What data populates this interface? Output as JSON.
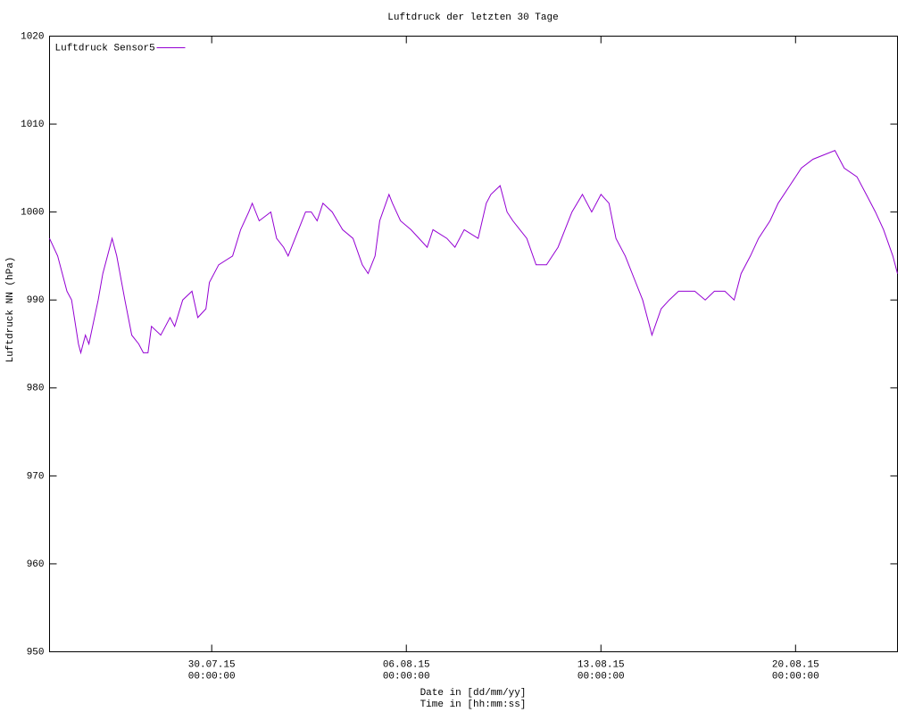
{
  "chart_data": {
    "type": "line",
    "title": "Luftdruck der letzten 30 Tage",
    "xlabel": [
      "Date in [dd/mm/yy]",
      "Time in [hh:mm:ss]"
    ],
    "ylabel": "Luftdruck NN (hPa)",
    "x": [
      "2015-07-24T04:00",
      "2015-07-24T11:00",
      "2015-07-24T19:00",
      "2015-07-24T23:00",
      "2015-07-25T05:00",
      "2015-07-25T07:00",
      "2015-07-25T11:00",
      "2015-07-25T14:00",
      "2015-07-25T22:00",
      "2015-07-26T02:00",
      "2015-07-26T10:00",
      "2015-07-26T14:00",
      "2015-07-26T21:00",
      "2015-07-27T03:00",
      "2015-07-27T09:00",
      "2015-07-27T13:00",
      "2015-07-27T17:00",
      "2015-07-27T20:00",
      "2015-07-28T04:00",
      "2015-07-28T12:00",
      "2015-07-28T16:00",
      "2015-07-28T23:00",
      "2015-07-29T07:00",
      "2015-07-29T12:00",
      "2015-07-29T19:00",
      "2015-07-29T22:00",
      "2015-07-30T06:00",
      "2015-07-30T18:00",
      "2015-07-31T01:00",
      "2015-07-31T08:00",
      "2015-07-31T11:00",
      "2015-07-31T17:00",
      "2015-08-01T03:00",
      "2015-08-01T08:00",
      "2015-08-01T14:00",
      "2015-08-01T18:00",
      "2015-08-02T00:00",
      "2015-08-02T09:00",
      "2015-08-02T14:00",
      "2015-08-02T19:00",
      "2015-08-03T00:00",
      "2015-08-03T08:00",
      "2015-08-03T17:00",
      "2015-08-04T02:00",
      "2015-08-04T10:00",
      "2015-08-04T15:00",
      "2015-08-04T21:00",
      "2015-08-05T01:00",
      "2015-08-05T09:00",
      "2015-08-05T12:00",
      "2015-08-05T19:00",
      "2015-08-06T04:00",
      "2015-08-06T18:00",
      "2015-08-06T23:00",
      "2015-08-07T11:00",
      "2015-08-07T18:00",
      "2015-08-08T02:00",
      "2015-08-08T14:00",
      "2015-08-08T21:00",
      "2015-08-09T01:00",
      "2015-08-09T09:00",
      "2015-08-09T15:00",
      "2015-08-09T20:00",
      "2015-08-10T08:00",
      "2015-08-10T16:00",
      "2015-08-11T01:00",
      "2015-08-11T11:00",
      "2015-08-11T23:00",
      "2015-08-12T08:00",
      "2015-08-12T16:00",
      "2015-08-13T00:00",
      "2015-08-13T07:00",
      "2015-08-13T13:00",
      "2015-08-13T21:00",
      "2015-08-14T06:00",
      "2015-08-14T12:00",
      "2015-08-14T20:00",
      "2015-08-15T04:00",
      "2015-08-15T11:00",
      "2015-08-15T19:00",
      "2015-08-16T09:00",
      "2015-08-16T18:00",
      "2015-08-17T02:00",
      "2015-08-17T11:00",
      "2015-08-17T19:00",
      "2015-08-18T01:00",
      "2015-08-18T09:00",
      "2015-08-18T16:00",
      "2015-08-19T02:00",
      "2015-08-19T09:00",
      "2015-08-19T19:00",
      "2015-08-20T05:00",
      "2015-08-20T15:00",
      "2015-08-21T10:00",
      "2015-08-21T18:00",
      "2015-08-22T05:00",
      "2015-08-22T13:00",
      "2015-08-22T21:00",
      "2015-08-23T04:00",
      "2015-08-23T12:00",
      "2015-08-23T16:00"
    ],
    "series": [
      {
        "name": "Luftdruck Sensor5",
        "color": "#9400d3",
        "values": [
          997,
          995,
          991,
          990,
          985,
          984,
          986,
          985,
          990,
          993,
          997,
          995,
          990,
          986,
          985,
          984,
          984,
          987,
          986,
          988,
          987,
          990,
          991,
          988,
          989,
          992,
          994,
          995,
          998,
          1000,
          1001,
          999,
          1000,
          997,
          996,
          995,
          997,
          1000,
          1000,
          999,
          1001,
          1000,
          998,
          997,
          994,
          993,
          995,
          999,
          1002,
          1001,
          999,
          998,
          996,
          998,
          997,
          996,
          998,
          997,
          1001,
          1002,
          1003,
          1000,
          999,
          997,
          994,
          994,
          996,
          1000,
          1002,
          1000,
          1002,
          1001,
          997,
          995,
          992,
          990,
          986,
          989,
          990,
          991,
          991,
          990,
          991,
          991,
          990,
          993,
          995,
          997,
          999,
          1001,
          1003,
          1005,
          1006,
          1007,
          1005,
          1004,
          1002,
          1000,
          998,
          995,
          993
        ]
      }
    ],
    "xlim": [
      "2015-07-24T04:00",
      "2015-08-23T16:00"
    ],
    "xticks": [
      {
        "value": "2015-07-30T00:00",
        "label": "30.07.15\n00:00:00"
      },
      {
        "value": "2015-08-06T00:00",
        "label": "06.08.15\n00:00:00"
      },
      {
        "value": "2015-08-13T00:00",
        "label": "13.08.15\n00:00:00"
      },
      {
        "value": "2015-08-20T00:00",
        "label": "20.08.15\n00:00:00"
      }
    ],
    "ylim": [
      950,
      1020
    ],
    "yticks": [
      950,
      960,
      970,
      980,
      990,
      1000,
      1010,
      1020
    ],
    "grid": false,
    "legend": "top left"
  }
}
